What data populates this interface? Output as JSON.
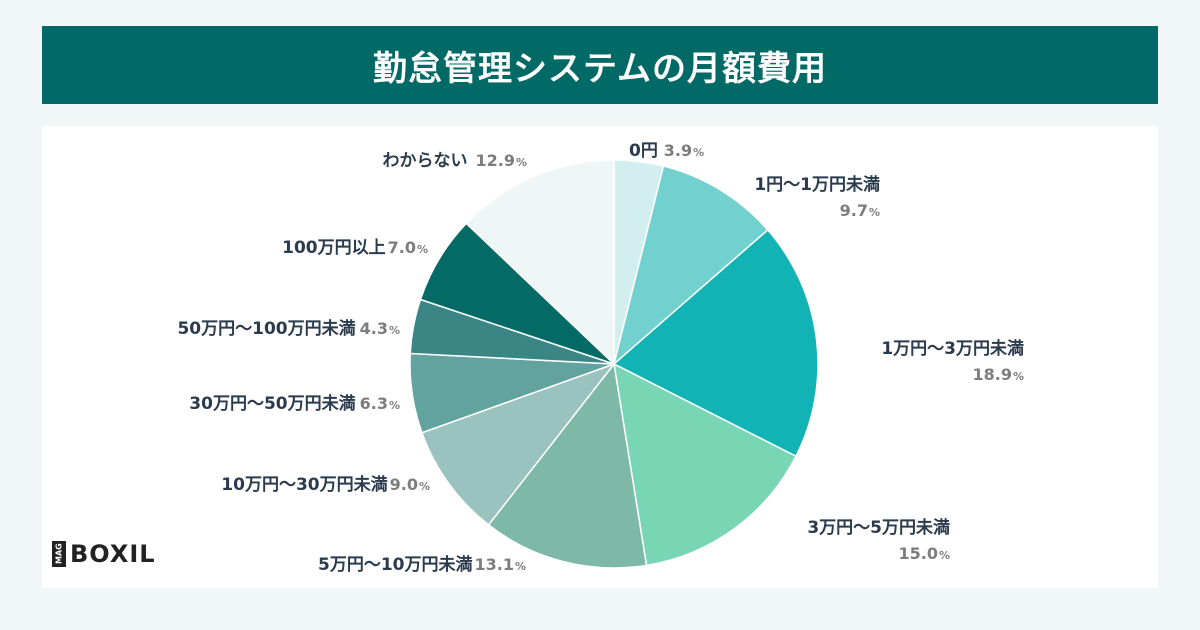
{
  "title": "勤怠管理システムの月額費用",
  "logo": {
    "mag": "MAG",
    "brand": "BOXIL"
  },
  "chart_data": {
    "type": "pie",
    "title": "勤怠管理システムの月額費用",
    "unit": "%",
    "slices": [
      {
        "label": "0円",
        "value": 3.9,
        "color": "#d3eeee"
      },
      {
        "label": "1円～1万円未満",
        "value": 9.7,
        "color": "#72d1cf"
      },
      {
        "label": "1万円～3万円未満",
        "value": 18.9,
        "color": "#12b3b4"
      },
      {
        "label": "3万円～5万円未満",
        "value": 15.0,
        "color": "#79d6b5"
      },
      {
        "label": "5万円～10万円未満",
        "value": 13.1,
        "color": "#7eb8a6"
      },
      {
        "label": "10万円～30万円未満",
        "value": 9.0,
        "color": "#9ac3c0"
      },
      {
        "label": "30万円～50万円未満",
        "value": 6.3,
        "color": "#62a3a0"
      },
      {
        "label": "50万円～100万円未満",
        "value": 4.3,
        "color": "#3a8684"
      },
      {
        "label": "100万円以上",
        "value": 7.0,
        "color": "#036a66"
      },
      {
        "label": "わからない",
        "value": 12.9,
        "color": "#eef7f6"
      }
    ]
  }
}
